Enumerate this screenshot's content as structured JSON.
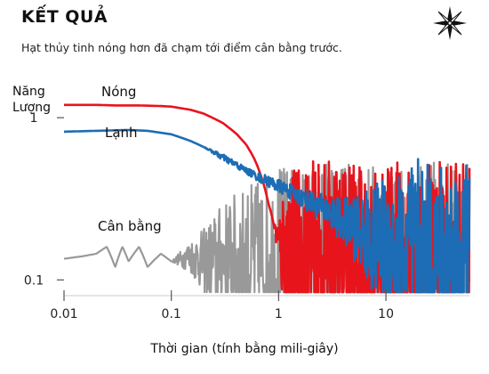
{
  "header": {
    "title": "KẾT QUẢ",
    "subtitle": "Hạt thủy tinh nóng hơn đã chạm tới điểm cân bằng trước."
  },
  "logo": {
    "icon": "compass-star-icon"
  },
  "chart_data": {
    "type": "line",
    "title": "KẾT QUẢ",
    "subtitle": "Hạt thủy tinh nóng hơn đã chạm tới điểm cân bằng trước.",
    "xlabel": "Thời gian (tính bằng mili-giây)",
    "ylabel": "Năng Lượng",
    "xscale": "log",
    "yscale": "log",
    "xlim": [
      0.01,
      60
    ],
    "ylim": [
      0.08,
      1.6
    ],
    "xticks": [
      {
        "value": 0.01,
        "label": "0.01"
      },
      {
        "value": 0.1,
        "label": "0.1"
      },
      {
        "value": 1,
        "label": "1"
      },
      {
        "value": 10,
        "label": "10"
      }
    ],
    "yticks": [
      {
        "value": 1,
        "label": "1"
      },
      {
        "value": 0.1,
        "label": "0.1"
      }
    ],
    "grid": false,
    "legend": "inline labels",
    "series": [
      {
        "name": "Nóng",
        "color": "#e8141c",
        "x": [
          0.01,
          0.02,
          0.03,
          0.05,
          0.08,
          0.1,
          0.15,
          0.2,
          0.3,
          0.4,
          0.5,
          0.6,
          0.7,
          0.8,
          0.9,
          1.0,
          1.1,
          1.3,
          1.6,
          2,
          3,
          5,
          8,
          10,
          15,
          20,
          30,
          40,
          60
        ],
        "y": [
          1.2,
          1.2,
          1.19,
          1.19,
          1.18,
          1.17,
          1.12,
          1.06,
          0.93,
          0.8,
          0.68,
          0.55,
          0.42,
          0.3,
          0.22,
          0.17,
          0.15,
          0.14,
          0.135,
          0.135,
          0.135,
          0.135,
          0.135,
          0.135,
          0.135,
          0.135,
          0.135,
          0.135,
          0.135
        ],
        "noise": [
          0,
          0,
          0,
          0,
          0,
          0,
          0,
          0,
          0,
          0,
          0,
          0,
          0,
          0,
          0,
          0.15,
          0.4,
          0.55,
          0.6,
          0.6,
          0.6,
          0.6,
          0.6,
          0.6,
          0.6,
          0.6,
          0.6,
          0.6,
          0.6
        ]
      },
      {
        "name": "Lạnh",
        "color": "#1c6db5",
        "x": [
          0.01,
          0.02,
          0.04,
          0.06,
          0.1,
          0.15,
          0.2,
          0.3,
          0.5,
          0.7,
          1,
          1.5,
          2,
          3,
          4,
          5,
          7,
          10,
          15,
          20,
          30,
          40,
          60
        ],
        "y": [
          0.82,
          0.83,
          0.84,
          0.83,
          0.79,
          0.72,
          0.66,
          0.57,
          0.47,
          0.42,
          0.38,
          0.33,
          0.3,
          0.26,
          0.23,
          0.21,
          0.18,
          0.16,
          0.145,
          0.14,
          0.135,
          0.135,
          0.135
        ],
        "noise": [
          0,
          0,
          0,
          0,
          0,
          0,
          0,
          0.02,
          0.02,
          0.03,
          0.04,
          0.05,
          0.07,
          0.1,
          0.14,
          0.2,
          0.3,
          0.45,
          0.55,
          0.6,
          0.6,
          0.6,
          0.6
        ]
      },
      {
        "name": "Cân bằng",
        "color": "#999999",
        "x": [
          0.01,
          0.015,
          0.02,
          0.025,
          0.03,
          0.035,
          0.04,
          0.05,
          0.06,
          0.08,
          0.1,
          0.15,
          0.2,
          0.3,
          0.5,
          0.7,
          1,
          1.5,
          2,
          3,
          5,
          10,
          20,
          60
        ],
        "y": [
          0.135,
          0.14,
          0.145,
          0.16,
          0.12,
          0.16,
          0.13,
          0.16,
          0.12,
          0.145,
          0.13,
          0.14,
          0.13,
          0.135,
          0.135,
          0.135,
          0.13,
          0.13,
          0.135,
          0.135,
          0.135,
          0.135,
          0.135,
          0.135
        ],
        "noise": [
          0,
          0,
          0,
          0,
          0,
          0,
          0,
          0,
          0,
          0,
          0,
          0.1,
          0.2,
          0.35,
          0.45,
          0.5,
          0.6,
          0.6,
          0.6,
          0.6,
          0.6,
          0.6,
          0.6,
          0.6
        ]
      }
    ]
  }
}
